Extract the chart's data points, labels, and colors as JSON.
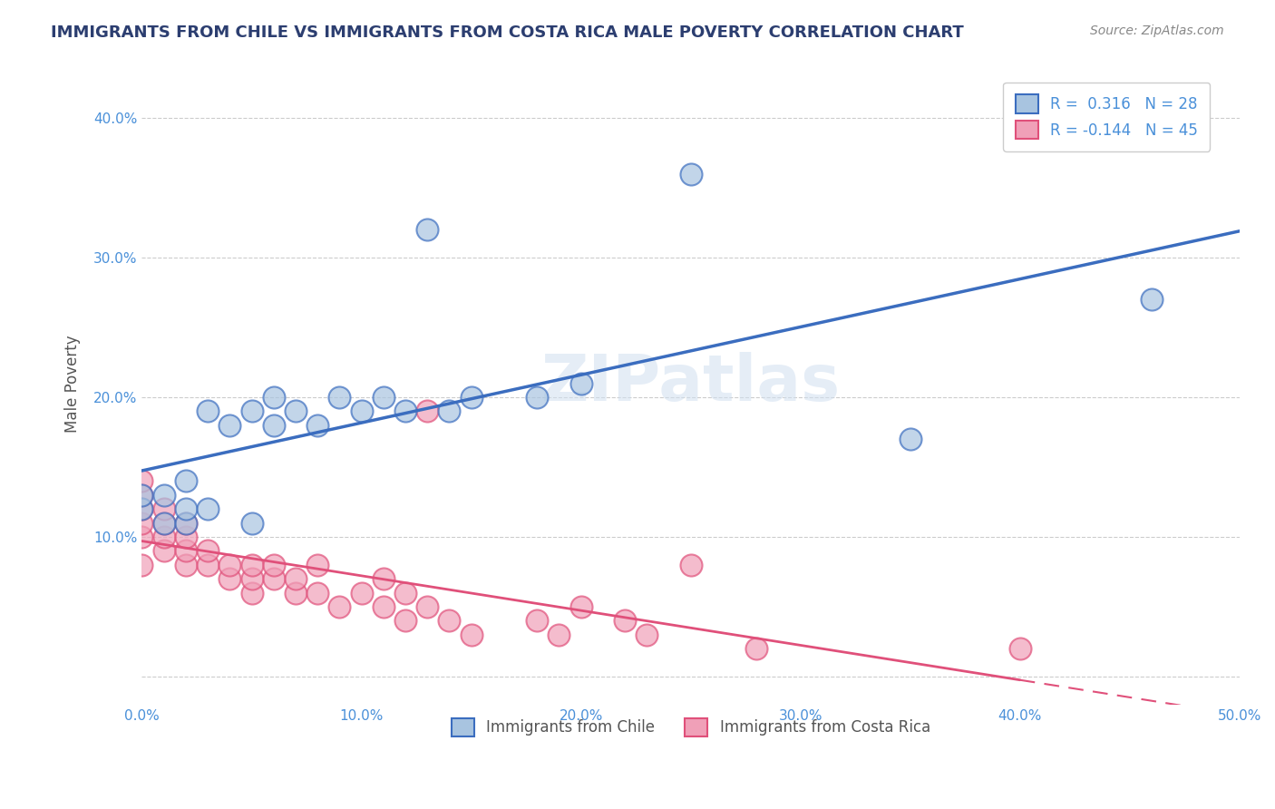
{
  "title": "IMMIGRANTS FROM CHILE VS IMMIGRANTS FROM COSTA RICA MALE POVERTY CORRELATION CHART",
  "source": "Source: ZipAtlas.com",
  "ylabel": "Male Poverty",
  "xlim": [
    0,
    0.5
  ],
  "ylim": [
    -0.02,
    0.44
  ],
  "yticks": [
    0.0,
    0.1,
    0.2,
    0.3,
    0.4
  ],
  "ytick_labels": [
    "",
    "10.0%",
    "20.0%",
    "30.0%",
    "40.0%"
  ],
  "watermark": "ZIPatlas",
  "chile_color": "#a8c4e0",
  "chile_line_color": "#3b6dbf",
  "costa_rica_color": "#f0a0b8",
  "costa_rica_line_color": "#e0507a",
  "chile_scatter_x": [
    0.0,
    0.0,
    0.01,
    0.01,
    0.02,
    0.02,
    0.02,
    0.03,
    0.03,
    0.04,
    0.05,
    0.05,
    0.06,
    0.06,
    0.07,
    0.08,
    0.09,
    0.1,
    0.11,
    0.12,
    0.13,
    0.14,
    0.15,
    0.18,
    0.2,
    0.25,
    0.35,
    0.46
  ],
  "chile_scatter_y": [
    0.12,
    0.13,
    0.11,
    0.13,
    0.11,
    0.12,
    0.14,
    0.12,
    0.19,
    0.18,
    0.11,
    0.19,
    0.18,
    0.2,
    0.19,
    0.18,
    0.2,
    0.19,
    0.2,
    0.19,
    0.32,
    0.19,
    0.2,
    0.2,
    0.21,
    0.36,
    0.17,
    0.27
  ],
  "costa_rica_scatter_x": [
    0.0,
    0.0,
    0.0,
    0.0,
    0.0,
    0.0,
    0.01,
    0.01,
    0.01,
    0.01,
    0.02,
    0.02,
    0.02,
    0.02,
    0.03,
    0.03,
    0.04,
    0.04,
    0.05,
    0.05,
    0.05,
    0.06,
    0.06,
    0.07,
    0.07,
    0.08,
    0.08,
    0.09,
    0.1,
    0.11,
    0.11,
    0.12,
    0.12,
    0.13,
    0.13,
    0.14,
    0.15,
    0.18,
    0.19,
    0.2,
    0.22,
    0.23,
    0.25,
    0.28,
    0.4
  ],
  "costa_rica_scatter_y": [
    0.1,
    0.11,
    0.12,
    0.13,
    0.14,
    0.08,
    0.09,
    0.1,
    0.11,
    0.12,
    0.08,
    0.09,
    0.1,
    0.11,
    0.08,
    0.09,
    0.07,
    0.08,
    0.06,
    0.07,
    0.08,
    0.07,
    0.08,
    0.06,
    0.07,
    0.06,
    0.08,
    0.05,
    0.06,
    0.05,
    0.07,
    0.04,
    0.06,
    0.19,
    0.05,
    0.04,
    0.03,
    0.04,
    0.03,
    0.05,
    0.04,
    0.03,
    0.08,
    0.02,
    0.02
  ],
  "chile_R": 0.316,
  "chile_N": 28,
  "costa_rica_R": -0.144,
  "costa_rica_N": 45,
  "background_color": "#ffffff",
  "grid_color": "#cccccc"
}
